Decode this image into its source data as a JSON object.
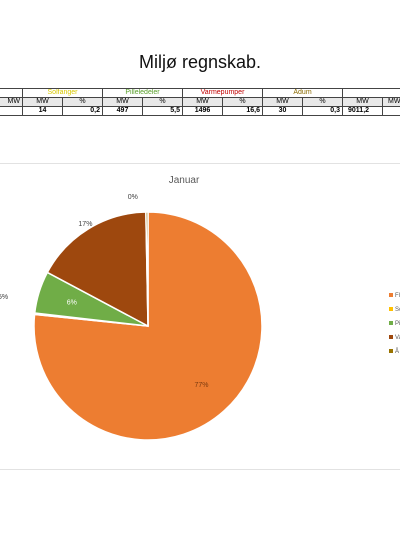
{
  "page": {
    "title": "Miljø regnskab."
  },
  "table": {
    "categories": [
      {
        "name": "",
        "color": "#000000"
      },
      {
        "name": "Solfanger",
        "color": "#e0d000"
      },
      {
        "name": "Pilleledeler",
        "color": "#5aa02c"
      },
      {
        "name": "Varmepumper",
        "color": "#c00000"
      },
      {
        "name": "Ådum",
        "color": "#8a6a00"
      },
      {
        "name": "",
        "color": "#000000"
      }
    ],
    "units": [
      "MW",
      "%",
      "MW",
      "%",
      "MW",
      "%",
      "MW",
      "%",
      "MW",
      "%",
      "MW"
    ],
    "values": [
      "",
      "14",
      "0,2",
      "497",
      "5,5",
      "1496",
      "16,6",
      "30",
      "0,3",
      "9011,2"
    ]
  },
  "chart_data": {
    "type": "pie",
    "title": "Januar",
    "slices": [
      {
        "label": "Fl",
        "value": 77,
        "pct_label": "77%",
        "color": "#ED7D31"
      },
      {
        "label": "So",
        "value": 0.2,
        "pct_label": "",
        "color": "#FFC000"
      },
      {
        "label": "Pi",
        "value": 6,
        "pct_label": "6%",
        "color": "#70AD47"
      },
      {
        "label": "Va",
        "value": 17,
        "pct_label": "17%",
        "color": "#9E480E"
      },
      {
        "label": "Å",
        "value": 0.3,
        "pct_label": "0%",
        "color": "#997300"
      }
    ],
    "edge_label": "5%",
    "legend": "right"
  }
}
